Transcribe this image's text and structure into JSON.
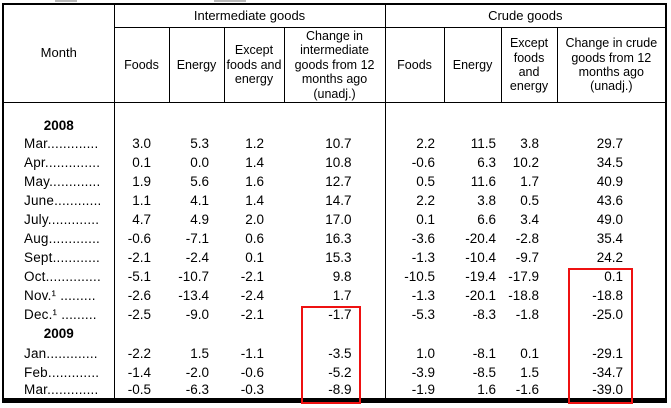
{
  "table": {
    "month_header": "Month",
    "groups": [
      {
        "label": "Intermediate goods",
        "columns": [
          "Foods",
          "Energy",
          "Except foods and energy",
          "Change in intermediate goods from 12 months ago (unadj.)"
        ]
      },
      {
        "label": "Crude goods",
        "columns": [
          "Foods",
          "Energy",
          "Except foods and energy",
          "Change in crude goods from 12 months ago (unadj.)"
        ]
      }
    ],
    "rows": [
      {
        "type": "year",
        "label": "2008"
      },
      {
        "type": "data",
        "label": "Mar.............",
        "values": [
          "3.0",
          "5.3",
          "1.2",
          "10.7",
          "2.2",
          "11.5",
          "3.8",
          "29.7"
        ]
      },
      {
        "type": "data",
        "label": "Apr..............",
        "values": [
          "0.1",
          "0.0",
          "1.4",
          "10.8",
          "-0.6",
          "6.3",
          "10.2",
          "34.5"
        ]
      },
      {
        "type": "data",
        "label": "May.............",
        "values": [
          "1.9",
          "5.6",
          "1.6",
          "12.7",
          "0.5",
          "11.6",
          "1.7",
          "40.9"
        ]
      },
      {
        "type": "data",
        "label": "June............",
        "values": [
          "1.1",
          "4.1",
          "1.4",
          "14.7",
          "2.2",
          "3.8",
          "0.5",
          "43.6"
        ]
      },
      {
        "type": "data",
        "label": "July.............",
        "values": [
          "4.7",
          "4.9",
          "2.0",
          "17.0",
          "0.1",
          "6.6",
          "3.4",
          "49.0"
        ]
      },
      {
        "type": "data",
        "label": "Aug.............",
        "values": [
          "-0.6",
          "-7.1",
          "0.6",
          "16.3",
          "-3.6",
          "-20.4",
          "-2.8",
          "35.4"
        ]
      },
      {
        "type": "data",
        "label": "Sept............",
        "values": [
          "-2.1",
          "-2.4",
          "0.1",
          "15.3",
          "-1.3",
          "-10.4",
          "-9.7",
          "24.2"
        ]
      },
      {
        "type": "data",
        "label": "Oct..............",
        "values": [
          "-5.1",
          "-10.7",
          "-2.1",
          "9.8",
          "-10.5",
          "-19.4",
          "-17.9",
          "0.1"
        ]
      },
      {
        "type": "data",
        "label": "Nov.¹ .........",
        "values": [
          "-2.6",
          "-13.4",
          "-2.4",
          "1.7",
          "-1.3",
          "-20.1",
          "-18.8",
          "-18.8"
        ]
      },
      {
        "type": "data",
        "label": "Dec.¹ .........",
        "values": [
          "-2.5",
          "-9.0",
          "-2.1",
          "-1.7",
          "-5.3",
          "-8.3",
          "-1.8",
          "-25.0"
        ]
      },
      {
        "type": "year",
        "label": "2009"
      },
      {
        "type": "data",
        "label": "Jan.............",
        "values": [
          "-2.2",
          "1.5",
          "-1.1",
          "-3.5",
          "1.0",
          "-8.1",
          "0.1",
          "-29.1"
        ]
      },
      {
        "type": "data",
        "label": "Feb.............",
        "values": [
          "-1.4",
          "-2.0",
          "-0.6",
          "-5.2",
          "-3.9",
          "-8.5",
          "1.5",
          "-34.7"
        ]
      },
      {
        "type": "data",
        "label": "Mar.............",
        "values": [
          "-0.5",
          "-6.3",
          "-0.3",
          "-8.9",
          "-1.9",
          "1.6",
          "-1.6",
          "-39.0"
        ]
      }
    ],
    "highlight_color": "#ee1111",
    "highlights": [
      {
        "column": "intermediate_change",
        "column_index": 3,
        "row_start_index": 10,
        "row_end_index": 14
      },
      {
        "column": "crude_change",
        "column_index": 7,
        "row_start_index": 8,
        "row_end_index": 14
      }
    ]
  }
}
